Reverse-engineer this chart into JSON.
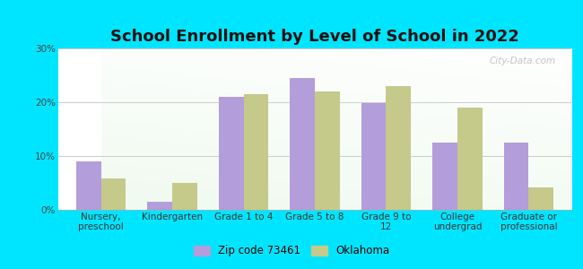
{
  "title": "School Enrollment by Level of School in 2022",
  "categories": [
    "Nursery,\npreschool",
    "Kindergarten",
    "Grade 1 to 4",
    "Grade 5 to 8",
    "Grade 9 to\n12",
    "College\nundergrad",
    "Graduate or\nprofessional"
  ],
  "zip_values": [
    9.0,
    1.5,
    21.0,
    24.5,
    19.8,
    12.5,
    12.5
  ],
  "ok_values": [
    5.8,
    5.0,
    21.5,
    22.0,
    23.0,
    19.0,
    4.2
  ],
  "zip_color": "#b39ddb",
  "ok_color": "#c5c98a",
  "background_outer": "#00e5ff",
  "ylim": [
    0,
    30
  ],
  "yticks": [
    0,
    10,
    20,
    30
  ],
  "ytick_labels": [
    "0%",
    "10%",
    "20%",
    "30%"
  ],
  "bar_width": 0.35,
  "title_fontsize": 13,
  "tick_fontsize": 7.5,
  "legend_fontsize": 8.5,
  "legend_labels": [
    "Zip code 73461",
    "Oklahoma"
  ]
}
